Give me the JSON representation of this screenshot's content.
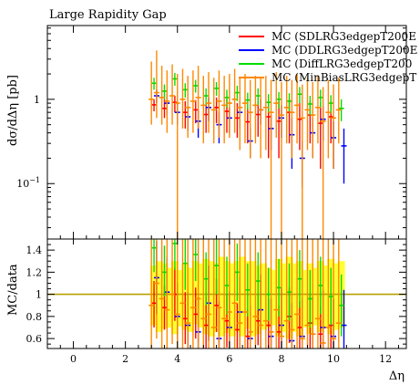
{
  "chart_data": {
    "type": "scatter",
    "title": "Large Rapidity Gap",
    "ylabel": "dσ/dΔη [pb]",
    "xlabel": "Δη",
    "xlim": [
      -1,
      12.8
    ],
    "main": {
      "scale": "log",
      "ylim": [
        0.022,
        7.5
      ],
      "yticks": [
        {
          "v": 1,
          "label": "1"
        },
        {
          "v": 0.1,
          "label": "10^-1"
        }
      ]
    },
    "ratio": {
      "ylabel": "MC/data",
      "ylim": [
        0.51,
        1.5
      ],
      "yticks": [
        0.6,
        0.8,
        1,
        1.2,
        1.4
      ],
      "reference": 1
    },
    "xticks": [
      0,
      2,
      4,
      6,
      8,
      10,
      12
    ],
    "colors": {
      "band": "#ffff33",
      "refline": "#b8a000"
    },
    "band": {
      "x": [
        3.1,
        3.3,
        3.5,
        3.7,
        3.9,
        4.1,
        4.3,
        4.5,
        4.7,
        4.9,
        5.1,
        5.3,
        5.5,
        5.7,
        5.9,
        6.1,
        6.3,
        6.5,
        6.7,
        6.9,
        7.1,
        7.3,
        7.5,
        7.7,
        7.9,
        8.1,
        8.3,
        8.5,
        8.7,
        8.9,
        9.1,
        9.3,
        9.5,
        9.7,
        9.9,
        10.1,
        10.3
      ],
      "lo": [
        0.72,
        0.66,
        0.69,
        0.7,
        0.64,
        0.71,
        0.68,
        0.66,
        0.73,
        0.7,
        0.64,
        0.62,
        0.66,
        0.62,
        0.65,
        0.62,
        0.66,
        0.62,
        0.69,
        0.62,
        0.64,
        0.68,
        0.7,
        0.72,
        0.62,
        0.66,
        0.6,
        0.66,
        0.62,
        0.7,
        0.64,
        0.72,
        0.66,
        0.7,
        0.64,
        0.68,
        0.7
      ],
      "hi": [
        1.26,
        1.3,
        1.28,
        1.24,
        1.3,
        1.22,
        1.28,
        1.24,
        1.3,
        1.28,
        1.32,
        1.3,
        1.28,
        1.34,
        1.3,
        1.28,
        1.3,
        1.34,
        1.3,
        1.3,
        1.26,
        1.28,
        1.24,
        1.22,
        1.32,
        1.28,
        1.34,
        1.28,
        1.3,
        1.22,
        1.28,
        1.24,
        1.3,
        1.26,
        1.32,
        1.28,
        1.3
      ]
    },
    "series": [
      {
        "name": "MC (SDLRG3edgepT200E",
        "color": "#ff0000",
        "x": [
          3.1,
          3.5,
          3.9,
          4.3,
          4.7,
          5.1,
          5.5,
          5.9,
          6.3,
          6.7,
          7.1,
          7.5,
          7.9,
          8.3,
          8.7,
          9.1,
          9.5,
          9.9
        ],
        "y": [
          0.86,
          0.78,
          0.92,
          0.7,
          0.75,
          0.66,
          0.8,
          0.72,
          0.6,
          0.54,
          0.66,
          0.62,
          0.55,
          0.7,
          0.58,
          0.65,
          0.52,
          0.62
        ],
        "ylo": [
          0.72,
          0.6,
          0.7,
          0.45,
          0.52,
          0.4,
          0.52,
          0.4,
          0.35,
          0.3,
          0.36,
          0.2,
          0.2,
          0.3,
          0.25,
          0.3,
          0.15,
          0.3
        ],
        "yhi": [
          1.0,
          1.0,
          1.1,
          0.95,
          0.98,
          0.9,
          1.05,
          1.0,
          0.9,
          0.8,
          0.95,
          0.9,
          0.95,
          1.0,
          0.9,
          0.95,
          0.9,
          0.95
        ],
        "r": [
          0.92,
          0.88,
          1.0,
          0.78,
          0.82,
          0.72,
          0.9,
          0.76,
          0.68,
          0.62,
          0.76,
          0.72,
          0.66,
          0.8,
          0.7,
          0.74,
          0.64,
          0.72
        ],
        "rlo": [
          0.7,
          0.68,
          0.76,
          0.55,
          0.6,
          0.51,
          0.66,
          0.52,
          0.51,
          0.51,
          0.54,
          0.51,
          0.51,
          0.56,
          0.51,
          0.51,
          0.51,
          0.51
        ],
        "rhi": [
          1.12,
          1.08,
          1.24,
          1.02,
          1.06,
          0.98,
          1.14,
          1.0,
          0.92,
          0.86,
          1.0,
          0.96,
          0.9,
          1.06,
          0.94,
          1.0,
          0.9,
          0.98
        ]
      },
      {
        "name": "MC (DDLRG3edgepT200E",
        "color": "#0000ff",
        "x": [
          3.2,
          3.6,
          4.0,
          4.4,
          4.8,
          5.2,
          5.6,
          6.0,
          6.4,
          6.8,
          7.2,
          7.6,
          8.0,
          8.4,
          8.8,
          9.2,
          9.6,
          10.0,
          10.4
        ],
        "y": [
          1.1,
          0.9,
          0.7,
          0.62,
          0.55,
          0.8,
          0.5,
          0.6,
          0.7,
          0.32,
          0.75,
          0.45,
          0.6,
          0.38,
          0.2,
          0.4,
          0.58,
          0.35,
          0.28
        ],
        "ylo": [
          0.9,
          0.65,
          0.5,
          0.42,
          0.35,
          0.55,
          0.3,
          0.4,
          0.45,
          0.2,
          0.5,
          0.25,
          0.35,
          0.15,
          0.09,
          0.2,
          0.32,
          0.15,
          0.1
        ],
        "yhi": [
          1.3,
          1.15,
          0.9,
          0.82,
          0.75,
          1.05,
          0.7,
          0.8,
          0.95,
          0.45,
          1.0,
          0.65,
          0.85,
          0.6,
          0.32,
          0.6,
          0.84,
          0.55,
          0.45
        ],
        "r": [
          1.15,
          1.02,
          0.8,
          0.72,
          0.66,
          0.92,
          0.6,
          0.7,
          0.84,
          0.6,
          0.86,
          0.62,
          0.72,
          0.58,
          0.62,
          0.64,
          0.7,
          0.62,
          0.72
        ],
        "rlo": [
          0.82,
          0.7,
          0.52,
          0.51,
          0.51,
          0.58,
          0.51,
          0.51,
          0.51,
          0.51,
          0.51,
          0.51,
          0.51,
          0.51,
          0.51,
          0.51,
          0.51,
          0.51,
          0.51
        ],
        "rhi": [
          1.48,
          1.34,
          1.1,
          1.02,
          0.98,
          1.26,
          0.94,
          1.02,
          1.16,
          0.9,
          1.18,
          0.96,
          1.06,
          0.92,
          0.96,
          0.98,
          1.04,
          0.96,
          1.04
        ]
      },
      {
        "name": "MC (DiffLRG3edgepT200",
        "color": "#00dd00",
        "x": [
          3.1,
          3.5,
          3.9,
          4.3,
          4.7,
          5.1,
          5.5,
          5.9,
          6.3,
          6.7,
          7.1,
          7.5,
          7.9,
          8.3,
          8.7,
          9.1,
          9.5,
          9.9,
          10.3
        ],
        "y": [
          1.55,
          1.25,
          1.75,
          1.3,
          1.45,
          1.1,
          1.35,
          1.05,
          1.2,
          0.98,
          1.1,
          0.92,
          1.0,
          0.95,
          1.15,
          0.88,
          1.05,
          0.9,
          0.78
        ],
        "ylo": [
          1.3,
          1.0,
          1.45,
          1.05,
          1.2,
          0.85,
          1.1,
          0.8,
          0.95,
          0.75,
          0.85,
          0.7,
          0.78,
          0.72,
          0.9,
          0.65,
          0.8,
          0.68,
          0.55
        ],
        "yhi": [
          1.8,
          1.5,
          2.05,
          1.55,
          1.7,
          1.35,
          1.6,
          1.3,
          1.45,
          1.2,
          1.35,
          1.15,
          1.22,
          1.18,
          1.4,
          1.1,
          1.3,
          1.12,
          1.0
        ],
        "r": [
          1.42,
          1.2,
          1.46,
          1.28,
          1.36,
          1.14,
          1.26,
          1.08,
          1.2,
          1.04,
          1.12,
          1.0,
          1.06,
          1.02,
          1.14,
          0.96,
          1.08,
          0.98,
          0.9
        ],
        "rlo": [
          1.2,
          0.98,
          1.22,
          1.04,
          1.12,
          0.9,
          1.0,
          0.82,
          0.94,
          0.8,
          0.86,
          0.76,
          0.8,
          0.76,
          0.88,
          0.7,
          0.82,
          0.72,
          0.62
        ],
        "rhi": [
          1.5,
          1.44,
          1.5,
          1.5,
          1.5,
          1.38,
          1.5,
          1.34,
          1.46,
          1.28,
          1.38,
          1.24,
          1.32,
          1.28,
          1.4,
          1.22,
          1.34,
          1.24,
          1.18
        ]
      },
      {
        "name": "MC (MinBiasLRG3edgepT",
        "color": "#ff8800",
        "x": [
          3.0,
          3.2,
          3.4,
          3.6,
          3.8,
          4.0,
          4.2,
          4.4,
          4.6,
          4.8,
          5.0,
          5.2,
          5.4,
          5.6,
          5.8,
          6.0,
          6.2,
          6.4,
          6.6,
          6.8,
          7.0,
          7.2,
          7.4,
          7.6,
          7.8,
          8.0,
          8.2,
          8.4,
          8.6,
          8.8,
          9.0,
          9.2,
          9.4,
          9.6,
          9.8,
          10.0,
          10.2
        ],
        "y": [
          1.0,
          1.2,
          1.05,
          0.95,
          1.1,
          0.9,
          1.0,
          0.8,
          0.95,
          1.05,
          0.85,
          0.9,
          0.75,
          0.95,
          0.85,
          0.9,
          1.0,
          0.8,
          0.9,
          0.7,
          0.85,
          0.75,
          0.8,
          0.7,
          0.9,
          0.65,
          0.8,
          0.7,
          0.85,
          0.6,
          0.75,
          0.65,
          0.8,
          0.55,
          0.7,
          0.6,
          0.75
        ],
        "ylo": [
          0.5,
          0.6,
          0.5,
          0.4,
          0.5,
          0.022,
          0.45,
          0.35,
          0.4,
          0.45,
          0.3,
          0.4,
          0.3,
          0.35,
          0.3,
          0.35,
          0.4,
          0.25,
          0.3,
          0.2,
          0.3,
          0.2,
          0.25,
          0.022,
          0.35,
          0.022,
          0.3,
          0.2,
          0.3,
          0.022,
          0.25,
          0.2,
          0.3,
          0.022,
          0.2,
          0.15,
          0.3
        ],
        "yhi": [
          2.8,
          3.8,
          2.5,
          2.2,
          2.6,
          2.0,
          2.3,
          1.9,
          2.2,
          2.5,
          1.9,
          2.1,
          1.8,
          2.2,
          1.9,
          2.0,
          2.3,
          1.8,
          2.0,
          1.7,
          1.9,
          1.8,
          1.9,
          1.7,
          2.1,
          1.6,
          1.9,
          1.7,
          2.0,
          1.5,
          1.8,
          1.6,
          1.9,
          1.4,
          1.7,
          1.5,
          1.8
        ],
        "r": [
          0.9,
          1.1,
          0.96,
          0.86,
          1.0,
          0.82,
          0.92,
          0.74,
          0.88,
          0.96,
          0.78,
          0.82,
          0.7,
          0.88,
          0.78,
          0.84,
          0.92,
          0.74,
          0.84,
          0.66,
          0.8,
          0.72,
          0.76,
          0.66,
          0.86,
          0.62,
          0.76,
          0.68,
          0.82,
          0.6,
          0.72,
          0.64,
          0.78,
          0.56,
          0.7,
          0.6,
          0.74
        ],
        "rlo": [
          0.51,
          0.6,
          0.51,
          0.51,
          0.55,
          0.51,
          0.51,
          0.51,
          0.51,
          0.51,
          0.51,
          0.51,
          0.51,
          0.51,
          0.51,
          0.51,
          0.51,
          0.51,
          0.51,
          0.51,
          0.51,
          0.51,
          0.51,
          0.51,
          0.51,
          0.51,
          0.51,
          0.51,
          0.51,
          0.51,
          0.51,
          0.51,
          0.51,
          0.51,
          0.51,
          0.51,
          0.51
        ],
        "rhi": [
          1.5,
          1.5,
          1.5,
          1.5,
          1.5,
          1.5,
          1.5,
          1.5,
          1.5,
          1.5,
          1.5,
          1.5,
          1.5,
          1.5,
          1.5,
          1.5,
          1.5,
          1.5,
          1.5,
          1.5,
          1.5,
          1.5,
          1.5,
          1.5,
          1.5,
          1.5,
          1.5,
          1.5,
          1.5,
          1.5,
          1.5,
          1.5,
          1.5,
          1.5,
          1.5,
          1.5,
          1.5
        ]
      }
    ]
  }
}
